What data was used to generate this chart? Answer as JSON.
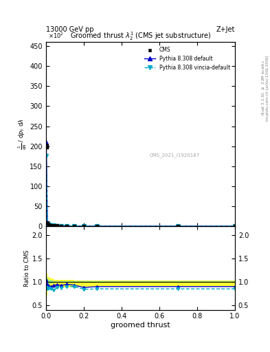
{
  "title": "Groomed thrust $\\lambda\\_2^1$ (CMS jet substructure)",
  "collision": "13000 GeV pp",
  "topleft": "13000 GeV pp",
  "topright": "Z+Jet",
  "xlabel": "groomed thrust",
  "ylabel_main": "$\\frac{1}{\\mathrm{d}N}$ / $\\mathrm{d}p_\\mathrm{T}$ $\\mathrm{d}\\lambda$",
  "ylabel_ratio": "Ratio to CMS",
  "right_label": "Rivet 3.1.10, $\\geq$ 3.2M events",
  "right_label2": "mcplots.cern.ch [arXiv:1306.3436]",
  "watermark": "CMS_2021_I1920187",
  "x_data": [
    0.002,
    0.008,
    0.015,
    0.025,
    0.04,
    0.06,
    0.08,
    0.11,
    0.15,
    0.2,
    0.27,
    0.7,
    1.0
  ],
  "cms_y": [
    200.0,
    8.0,
    3.5,
    2.0,
    1.2,
    0.8,
    0.6,
    0.4,
    0.3,
    0.25,
    0.2,
    0.2,
    0.2
  ],
  "pythia_default_y": [
    209.0,
    7.5,
    3.2,
    1.8,
    1.1,
    0.75,
    0.55,
    0.38,
    0.28,
    0.22,
    0.18,
    0.18,
    0.18
  ],
  "pythia_vincia_y": [
    175.0,
    6.8,
    3.0,
    1.7,
    1.0,
    0.7,
    0.52,
    0.36,
    0.27,
    0.21,
    0.17,
    0.17,
    0.17
  ],
  "ratio_default_y": [
    1.045,
    0.94,
    0.91,
    0.9,
    0.92,
    0.94,
    0.92,
    0.95,
    0.93,
    0.88,
    0.9,
    0.9,
    0.9
  ],
  "ratio_vincia_y": [
    0.875,
    0.85,
    0.86,
    0.85,
    0.83,
    0.875,
    0.87,
    0.9,
    0.9,
    0.84,
    0.85,
    0.85,
    0.85
  ],
  "green_upper": [
    1.12,
    1.06,
    1.04,
    1.03,
    1.02,
    1.02,
    1.02,
    1.02,
    1.01,
    1.01,
    1.01,
    1.01,
    1.02
  ],
  "green_lower": [
    0.88,
    0.94,
    0.96,
    0.97,
    0.98,
    0.98,
    0.98,
    0.98,
    0.99,
    0.99,
    0.99,
    0.99,
    0.98
  ],
  "yellow_upper": [
    1.2,
    1.12,
    1.09,
    1.07,
    1.05,
    1.05,
    1.04,
    1.04,
    1.03,
    1.03,
    1.03,
    1.03,
    1.04
  ],
  "yellow_lower": [
    0.7,
    0.82,
    0.84,
    0.86,
    0.88,
    0.88,
    0.88,
    0.88,
    0.89,
    0.89,
    0.89,
    0.89,
    0.88
  ],
  "ylim_main": [
    0,
    460
  ],
  "ylim_ratio": [
    0.4,
    2.2
  ],
  "color_cms": "black",
  "color_default": "#0000cc",
  "color_vincia": "#00aacc",
  "yticks_main": [
    0,
    50,
    100,
    150,
    200,
    250,
    300,
    350,
    400,
    450
  ],
  "yticks_ratio": [
    0.5,
    1.0,
    1.5,
    2.0
  ],
  "background_color": "white"
}
